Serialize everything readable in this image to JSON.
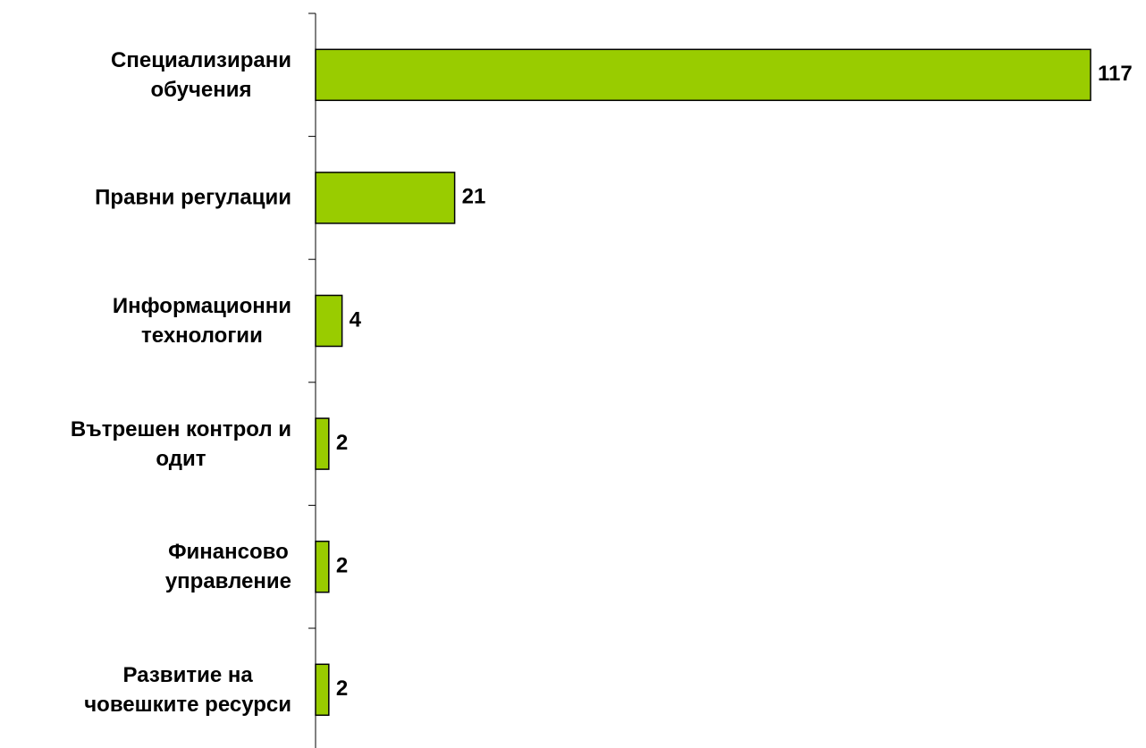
{
  "chart_data": {
    "type": "barh",
    "categories": [
      "Специализирани\nобучения",
      "Правни регулации",
      "Информационни\nтехнологии",
      "Вътрешен контрол и\nодит",
      "Финансово\nуправление",
      "Развитие на\nчовешките ресурси"
    ],
    "values": [
      117,
      21,
      4,
      2,
      2,
      2
    ],
    "color": "#99cc00"
  }
}
